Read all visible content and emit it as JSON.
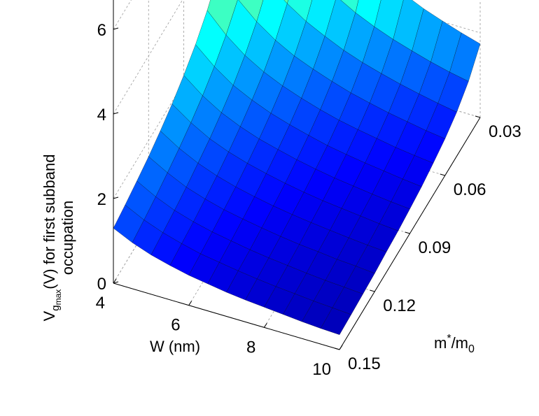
{
  "chart_data": {
    "type": "surface3d",
    "xlabel": "W (nm)",
    "ylabel": "m*/m0",
    "zlabel": "V_gmax(V) for first subband occupation",
    "zlabel_parts": {
      "v": "V",
      "sub1": "g",
      "sub2": "max",
      "rest1": "(V) for first subband",
      "rest2": "occupation"
    },
    "ylabel_parts": {
      "a": "m",
      "sup": "*",
      "b": "/m",
      "sub": "0"
    },
    "xlim": [
      4,
      10
    ],
    "ylim": [
      0.03,
      0.15
    ],
    "zlim": [
      0,
      7
    ],
    "x_ticks": [
      "4",
      "6",
      "8",
      "10"
    ],
    "y_ticks": [
      "0.03",
      "0.06",
      "0.09",
      "0.12",
      "0.15"
    ],
    "z_ticks": [
      "0",
      "2",
      "4",
      "6"
    ],
    "colormap": "jet",
    "colormap_range": [
      0,
      6.4
    ],
    "grid": true,
    "x": [
      4.0,
      4.5,
      5.0,
      5.5,
      6.0,
      6.5,
      7.0,
      7.5,
      8.0,
      8.5,
      9.0,
      9.5,
      10.0
    ],
    "y": [
      0.03,
      0.04,
      0.05,
      0.06,
      0.07,
      0.08,
      0.09,
      0.1,
      0.11,
      0.12,
      0.13,
      0.14,
      0.15
    ],
    "z": [
      [
        6.5,
        5.46,
        4.65,
        4.05,
        3.56,
        3.2,
        2.87,
        2.6,
        2.38,
        2.18,
        2.02,
        1.87,
        1.74
      ],
      [
        4.88,
        4.1,
        3.49,
        3.03,
        2.67,
        2.4,
        2.15,
        1.95,
        1.78,
        1.64,
        1.51,
        1.4,
        1.31
      ],
      [
        3.9,
        3.28,
        2.79,
        2.43,
        2.14,
        1.92,
        1.72,
        1.56,
        1.43,
        1.31,
        1.21,
        1.12,
        1.04
      ],
      [
        3.25,
        2.73,
        2.33,
        2.02,
        1.78,
        1.6,
        1.44,
        1.3,
        1.19,
        1.09,
        1.01,
        0.93,
        0.87
      ],
      [
        2.79,
        2.34,
        1.99,
        1.73,
        1.53,
        1.37,
        1.23,
        1.11,
        1.02,
        0.94,
        0.86,
        0.8,
        0.75
      ],
      [
        2.44,
        2.05,
        1.74,
        1.52,
        1.34,
        1.2,
        1.08,
        0.97,
        0.89,
        0.82,
        0.76,
        0.7,
        0.65
      ],
      [
        2.17,
        1.82,
        1.55,
        1.35,
        1.19,
        1.07,
        0.96,
        0.87,
        0.79,
        0.73,
        0.67,
        0.62,
        0.58
      ],
      [
        1.95,
        1.64,
        1.39,
        1.21,
        1.07,
        0.96,
        0.86,
        0.78,
        0.71,
        0.66,
        0.61,
        0.56,
        0.52
      ],
      [
        1.77,
        1.49,
        1.27,
        1.1,
        0.97,
        0.87,
        0.78,
        0.71,
        0.65,
        0.6,
        0.55,
        0.51,
        0.48
      ],
      [
        1.62,
        1.37,
        1.16,
        1.01,
        0.89,
        0.8,
        0.72,
        0.65,
        0.59,
        0.55,
        0.5,
        0.47,
        0.43
      ],
      [
        1.5,
        1.26,
        1.07,
        0.93,
        0.82,
        0.74,
        0.66,
        0.6,
        0.55,
        0.5,
        0.46,
        0.43,
        0.4
      ],
      [
        1.39,
        1.17,
        1.0,
        0.87,
        0.76,
        0.69,
        0.62,
        0.56,
        0.51,
        0.47,
        0.43,
        0.4,
        0.37
      ],
      [
        1.3,
        1.09,
        0.93,
        0.81,
        0.71,
        0.64,
        0.57,
        0.52,
        0.48,
        0.44,
        0.4,
        0.37,
        0.35
      ]
    ]
  }
}
